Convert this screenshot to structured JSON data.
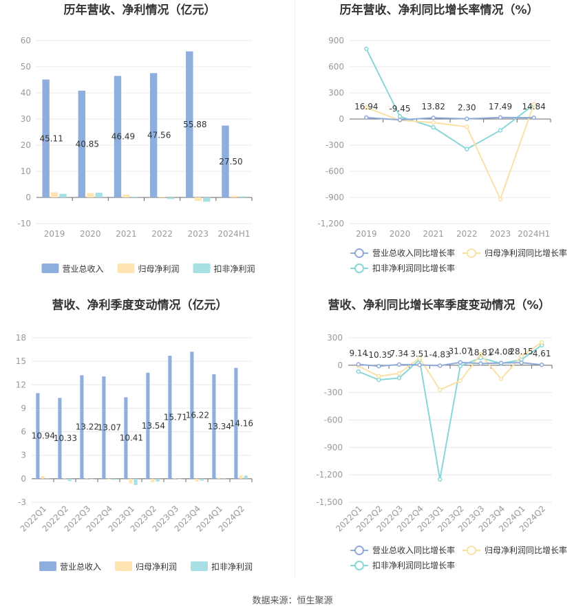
{
  "colors": {
    "revenue": "#8eafdd",
    "net_profit": "#fde4b0",
    "deducted_profit": "#a7e0e4",
    "revenue_line": "#8ea9da",
    "net_line": "#fbe0a6",
    "deducted_line": "#87d6d8",
    "grid": "#e8e8e8",
    "axis_text": "#999999",
    "title": "#333333"
  },
  "source_text": "数据来源：恒生聚源",
  "chart_data": [
    {
      "id": "annual-bar",
      "type": "bar",
      "title": "历年营收、净利情况（亿元）",
      "categories": [
        "2019",
        "2020",
        "2021",
        "2022",
        "2023",
        "2024H1"
      ],
      "ylim": [
        -10,
        60
      ],
      "yticks": [
        -10,
        0,
        10,
        20,
        30,
        40,
        50,
        60
      ],
      "legend_position": "bottom",
      "series": [
        {
          "name": "营业总收入",
          "values": [
            45.11,
            40.85,
            46.49,
            47.56,
            55.88,
            27.5
          ],
          "labels": [
            "45.11",
            "40.85",
            "46.49",
            "47.56",
            "55.88",
            "27.50"
          ]
        },
        {
          "name": "归母净利润",
          "values": [
            2.0,
            1.7,
            1.1,
            0.3,
            -1.3,
            0.6
          ]
        },
        {
          "name": "扣非净利润",
          "values": [
            1.4,
            1.8,
            0.3,
            -0.6,
            -1.6,
            0.4
          ]
        }
      ]
    },
    {
      "id": "annual-line",
      "type": "line",
      "title": "历年营收、净利同比增长率情况（%）",
      "categories": [
        "2019",
        "2020",
        "2021",
        "2022",
        "2023",
        "2024H1"
      ],
      "ylim": [
        -1200,
        900
      ],
      "yticks": [
        -1200,
        -900,
        -600,
        -300,
        0,
        300,
        600,
        900
      ],
      "ytick_labels": [
        "-1,200",
        "-900",
        "-600",
        "-300",
        "0",
        "300",
        "600",
        "900"
      ],
      "legend_position": "bottom",
      "series": [
        {
          "name": "营业总收入同比增长率",
          "values": [
            16.94,
            -9.45,
            13.82,
            2.3,
            17.49,
            14.84
          ],
          "labels": [
            "16.94",
            "-9.45",
            "13.82",
            "2.30",
            "17.49",
            "14.84"
          ]
        },
        {
          "name": "归母净利润同比增长率",
          "values": [
            130,
            -15,
            -40,
            -90,
            -920,
            170
          ]
        },
        {
          "name": "扣非净利润同比增长率",
          "values": [
            805,
            30,
            -95,
            -345,
            -130,
            165
          ]
        }
      ]
    },
    {
      "id": "quarter-bar",
      "type": "bar",
      "title": "营收、净利季度变动情况（亿元）",
      "categories": [
        "2022Q1",
        "2022Q2",
        "2022Q3",
        "2022Q4",
        "2023Q1",
        "2023Q2",
        "2023Q3",
        "2023Q4",
        "2024Q1",
        "2024Q2"
      ],
      "ylim": [
        -3,
        18
      ],
      "yticks": [
        -3,
        0,
        3,
        6,
        9,
        12,
        15,
        18
      ],
      "legend_position": "bottom",
      "series": [
        {
          "name": "营业总收入",
          "values": [
            10.94,
            10.33,
            13.22,
            13.07,
            10.41,
            13.54,
            15.71,
            16.22,
            13.34,
            14.16
          ],
          "labels": [
            "10.94",
            "10.33",
            "13.22",
            "13.07",
            "10.41",
            "13.54",
            "15.71",
            "16.22",
            "13.34",
            "14.16"
          ]
        },
        {
          "name": "归母净利润",
          "values": [
            0.35,
            0.05,
            0.05,
            -0.1,
            -0.6,
            -0.45,
            0.05,
            -0.35,
            0.1,
            0.45
          ]
        },
        {
          "name": "扣非净利润",
          "values": [
            0.05,
            -0.3,
            0.0,
            -0.15,
            -0.8,
            -0.35,
            -0.05,
            -0.25,
            0.05,
            0.4
          ]
        }
      ]
    },
    {
      "id": "quarter-line",
      "type": "line",
      "title": "营收、净利同比增长率季度变动情况（%）",
      "categories": [
        "2022Q1",
        "2022Q2",
        "2022Q3",
        "2022Q4",
        "2023Q1",
        "2023Q2",
        "2023Q3",
        "2023Q4",
        "2024Q1",
        "2024Q2"
      ],
      "ylim": [
        -1500,
        300
      ],
      "yticks": [
        -1500,
        -1200,
        -900,
        -600,
        -300,
        0,
        300
      ],
      "ytick_labels": [
        "-1,500",
        "-1,200",
        "-900",
        "-600",
        "-300",
        "0",
        "300"
      ],
      "legend_position": "bottom",
      "series": [
        {
          "name": "营业总收入同比增长率",
          "values": [
            9.14,
            -10.35,
            7.34,
            3.51,
            -4.83,
            31.07,
            18.81,
            24.08,
            28.15,
            4.61
          ],
          "labels": [
            "9.14",
            "-10.35",
            "7.34",
            "3.51",
            "-4.83",
            "31.07",
            "18.81",
            "24.08",
            "28.15",
            "4.61"
          ]
        },
        {
          "name": "归母净利润同比增长率",
          "values": [
            -10,
            -120,
            -90,
            80,
            -270,
            -170,
            120,
            -150,
            100,
            250
          ]
        },
        {
          "name": "扣非净利润同比增长率",
          "values": [
            -70,
            -160,
            -140,
            60,
            -1250,
            -10,
            80,
            20,
            60,
            220
          ]
        }
      ]
    }
  ]
}
